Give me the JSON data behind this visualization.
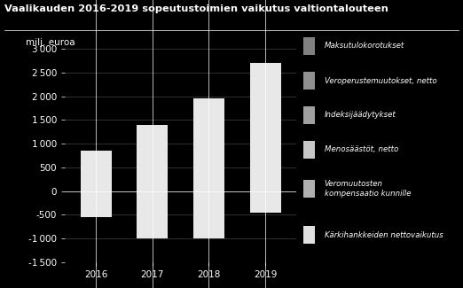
{
  "title": "Vaalikauden 2016-2019 sopeutustoimien vaikutus valtiontalouteen",
  "ylabel": "milj. euroa",
  "background_color": "#000000",
  "text_color": "#ffffff",
  "grid_color": "#444444",
  "years": [
    "2016",
    "2017",
    "2018",
    "2019"
  ],
  "ylim": [
    -1500,
    3000
  ],
  "yticks": [
    -1500,
    -1000,
    -500,
    0,
    500,
    1000,
    1500,
    2000,
    2500,
    3000
  ],
  "legend_labels": [
    "Maksutulokorotukset",
    "Veroperustemuutokset, netto",
    "Indeksijäädytykset",
    "Menosäästöt, netto",
    "Veromuutosten\nkompensaatio kunnille",
    "Kärkihankkeiden nettovaikutus"
  ],
  "legend_colors": [
    "#808080",
    "#909090",
    "#a0a0a0",
    "#c8c8c8",
    "#b0b0b0",
    "#e0e0e0"
  ],
  "bar_positive": [
    850,
    1400,
    1950,
    2700
  ],
  "bar_negative": [
    -550,
    -1000,
    -1000,
    -450
  ],
  "bar_color": "#e8e8e8"
}
